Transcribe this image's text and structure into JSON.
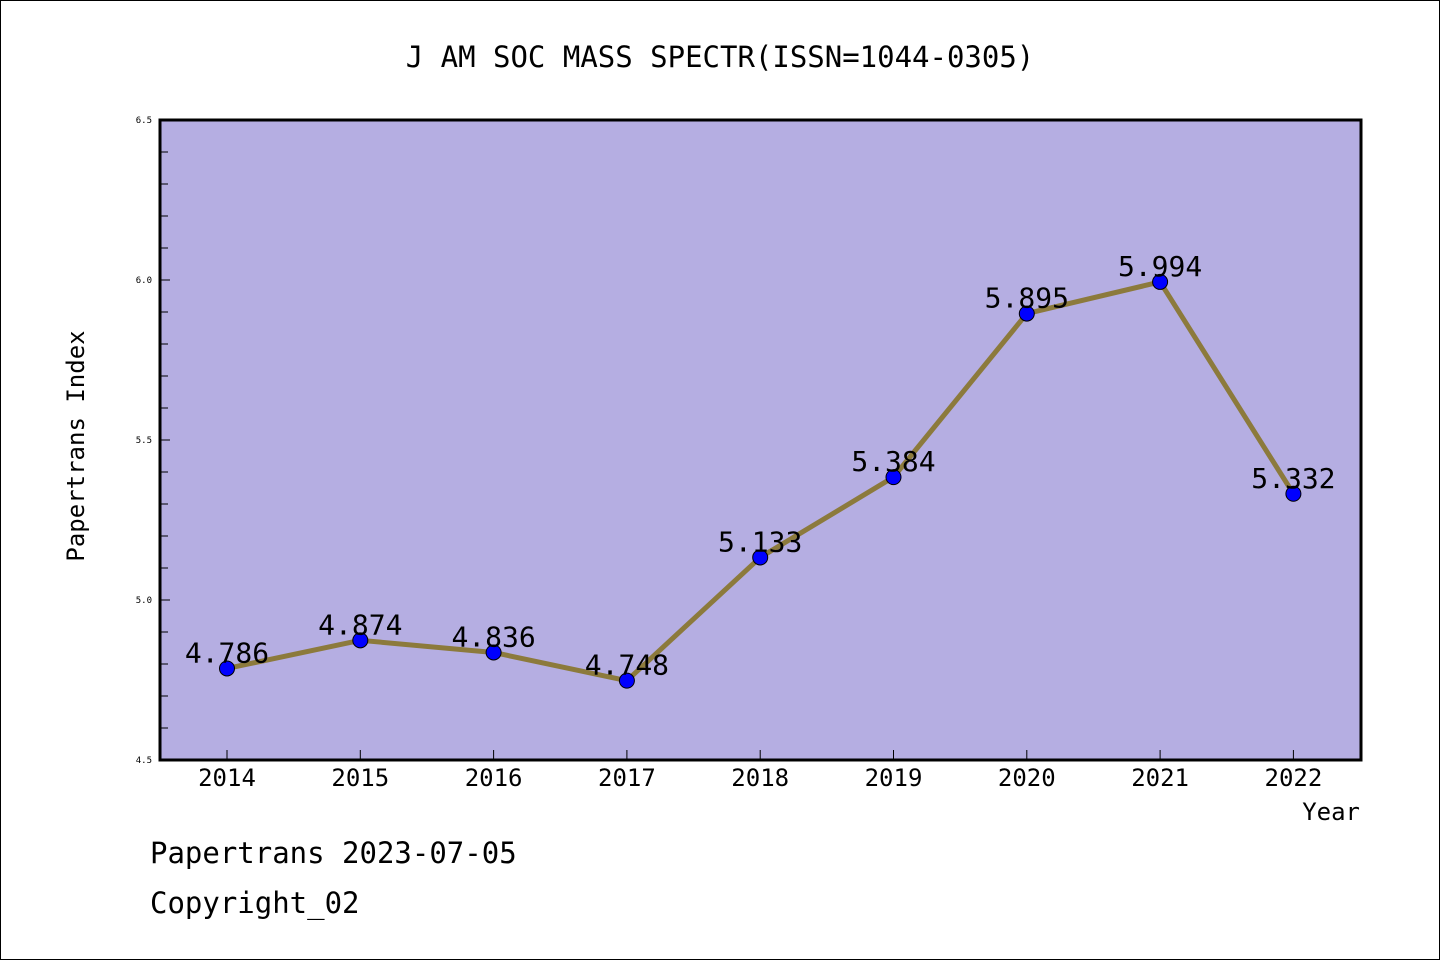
{
  "chart_data": {
    "type": "line",
    "title": "J AM SOC MASS SPECTR(ISSN=1044-0305)",
    "xlabel": "Year",
    "ylabel": "Papertrans Index",
    "categories": [
      "2014",
      "2015",
      "2016",
      "2017",
      "2018",
      "2019",
      "2020",
      "2021",
      "2022"
    ],
    "values": [
      4.786,
      4.874,
      4.836,
      4.748,
      5.133,
      5.384,
      5.895,
      5.994,
      5.332
    ],
    "data_labels": [
      "4.786",
      "4.874",
      "4.836",
      "4.748",
      "5.133",
      "5.384",
      "5.895",
      "5.994",
      "5.332"
    ],
    "ylim": [
      4.5,
      6.5
    ],
    "y_major_ticks": [
      4.5,
      5.0,
      5.5,
      6.0,
      6.5
    ],
    "y_tick_labels": [
      "4.5",
      "5.0",
      "5.5",
      "6.0",
      "6.5"
    ],
    "grid": false,
    "colors": {
      "plot_background": "#b5aee2",
      "line": "#8c7a3c",
      "marker": "#0000ff"
    }
  },
  "footer": {
    "line1": "Papertrans 2023-07-05",
    "line2": "Copyright_02"
  }
}
